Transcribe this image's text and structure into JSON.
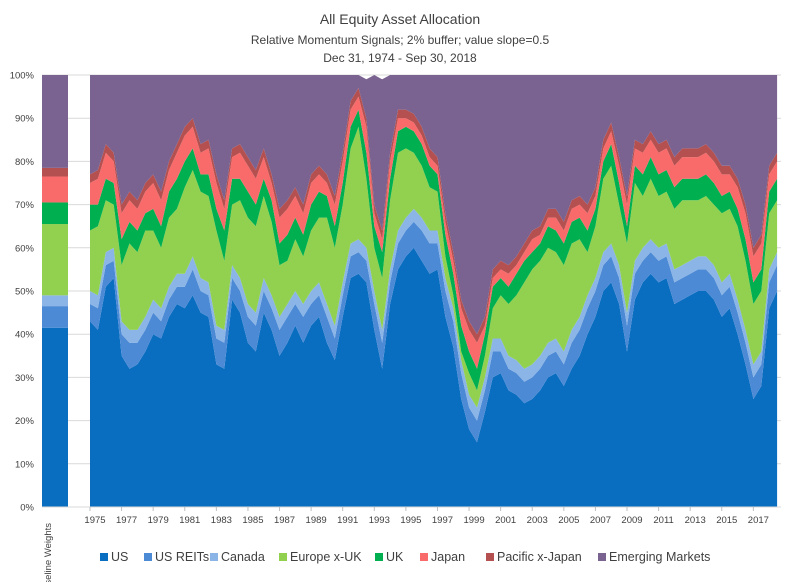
{
  "chart_data": {
    "type": "area",
    "title": "All Equity Asset Allocation",
    "subtitle": "Relative Momentum Signals; 2% buffer; value slope=0.5",
    "date_range": "Dec 31, 1974 - Sep 30, 2018",
    "stacked": true,
    "ylim": [
      0,
      100
    ],
    "y_ticks": [
      "0%",
      "10%",
      "20%",
      "30%",
      "40%",
      "50%",
      "60%",
      "70%",
      "80%",
      "90%",
      "100%"
    ],
    "x_ticks": [
      "1975",
      "1977",
      "1979",
      "1981",
      "1983",
      "1985",
      "1987",
      "1989",
      "1991",
      "1993",
      "1995",
      "1997",
      "1999",
      "2001",
      "2003",
      "2005",
      "2007",
      "2009",
      "2011",
      "2013",
      "2015",
      "2017"
    ],
    "x_label": "Baseline Weights",
    "legend_position": "bottom",
    "colors": {
      "US": "#0a6ec0",
      "US REITs": "#4d8ad6",
      "Canada": "#8ab5e6",
      "Europe x-UK": "#92d050",
      "UK": "#00b050",
      "Japan": "#f96b6b",
      "Pacific x-Japan": "#b55050",
      "Emerging Markets": "#7a6390"
    },
    "baseline_weights": [
      {
        "name": "US",
        "value": 41.5
      },
      {
        "name": "US REITs",
        "value": 5
      },
      {
        "name": "Canada",
        "value": 2.5
      },
      {
        "name": "Europe x-UK",
        "value": 16.5
      },
      {
        "name": "UK",
        "value": 5
      },
      {
        "name": "Japan",
        "value": 6
      },
      {
        "name": "Pacific x-Japan",
        "value": 2
      },
      {
        "name": "Emerging Markets",
        "value": 21.5
      }
    ],
    "x": [
      1975.0,
      1975.5,
      1976.0,
      1976.5,
      1977.0,
      1977.5,
      1978.0,
      1978.5,
      1979.0,
      1979.5,
      1980.0,
      1980.5,
      1981.0,
      1981.5,
      1982.0,
      1982.5,
      1983.0,
      1983.5,
      1984.0,
      1984.5,
      1985.0,
      1985.5,
      1986.0,
      1986.5,
      1987.0,
      1987.5,
      1988.0,
      1988.5,
      1989.0,
      1989.5,
      1990.0,
      1990.5,
      1991.0,
      1991.5,
      1992.0,
      1992.5,
      1993.0,
      1993.5,
      1994.0,
      1994.5,
      1995.0,
      1995.5,
      1996.0,
      1996.5,
      1997.0,
      1997.5,
      1998.0,
      1998.5,
      1999.0,
      1999.5,
      2000.0,
      2000.5,
      2001.0,
      2001.5,
      2002.0,
      2002.5,
      2003.0,
      2003.5,
      2004.0,
      2004.5,
      2005.0,
      2005.5,
      2006.0,
      2006.5,
      2007.0,
      2007.5,
      2008.0,
      2008.5,
      2009.0,
      2009.5,
      2010.0,
      2010.5,
      2011.0,
      2011.5,
      2012.0,
      2012.5,
      2013.0,
      2013.5,
      2014.0,
      2014.5,
      2015.0,
      2015.5,
      2016.0,
      2016.5,
      2017.0,
      2017.5,
      2018.0,
      2018.5
    ],
    "series": [
      {
        "name": "US",
        "values": [
          43,
          41,
          51,
          53,
          35,
          32,
          33,
          36,
          40,
          39,
          44,
          47,
          46,
          49,
          45,
          44,
          33,
          32,
          48,
          45,
          38,
          36,
          45,
          41,
          35,
          38,
          42,
          38,
          42,
          44,
          38,
          34,
          44,
          53,
          54,
          52,
          41,
          32,
          47,
          55,
          58,
          60,
          57,
          54,
          55,
          44,
          37,
          25,
          18,
          15,
          22,
          30,
          31,
          27,
          26,
          24,
          25,
          27,
          30,
          31,
          28,
          32,
          35,
          40,
          44,
          50,
          52,
          47,
          36,
          48,
          52,
          54,
          52,
          53,
          47,
          48,
          49,
          50,
          50,
          48,
          44,
          46,
          40,
          33,
          25,
          28,
          46,
          50
        ]
      },
      {
        "name": "US REITs",
        "values": [
          4,
          5,
          5,
          4,
          5,
          6,
          5,
          5,
          5,
          4,
          4,
          4,
          5,
          6,
          5,
          5,
          6,
          6,
          5,
          5,
          6,
          6,
          5,
          5,
          6,
          6,
          5,
          6,
          5,
          5,
          6,
          5,
          5,
          5,
          5,
          5,
          6,
          6,
          5,
          6,
          6,
          6,
          7,
          7,
          6,
          6,
          6,
          6,
          5,
          5,
          5,
          6,
          5,
          5,
          5,
          5,
          5,
          5,
          5,
          5,
          5,
          6,
          6,
          6,
          6,
          6,
          6,
          6,
          6,
          6,
          5,
          5,
          5,
          5,
          5,
          5,
          5,
          5,
          5,
          5,
          5,
          5,
          5,
          5,
          5,
          5,
          6,
          6
        ]
      },
      {
        "name": "Canada",
        "values": [
          3,
          3,
          3,
          3,
          3,
          3,
          3,
          3,
          3,
          3,
          3,
          3,
          3,
          3,
          3,
          3,
          3,
          3,
          3,
          3,
          3,
          3,
          3,
          3,
          3,
          3,
          3,
          3,
          3,
          3,
          3,
          3,
          3,
          3,
          3,
          3,
          3,
          3,
          3,
          3,
          3,
          3,
          3,
          3,
          3,
          3,
          3,
          3,
          3,
          3,
          3,
          3,
          3,
          3,
          3,
          3,
          3,
          3,
          3,
          3,
          3,
          3,
          3,
          3,
          3,
          3,
          3,
          3,
          3,
          3,
          3,
          3,
          3,
          3,
          3,
          3,
          3,
          3,
          3,
          3,
          3,
          3,
          3,
          3,
          3,
          3,
          3,
          3
        ]
      },
      {
        "name": "Europe x-UK",
        "values": [
          14,
          16,
          12,
          10,
          13,
          20,
          18,
          20,
          16,
          14,
          16,
          15,
          20,
          20,
          20,
          20,
          22,
          16,
          14,
          18,
          20,
          20,
          19,
          17,
          12,
          10,
          12,
          11,
          14,
          15,
          20,
          18,
          18,
          22,
          26,
          16,
          10,
          12,
          16,
          18,
          16,
          13,
          12,
          10,
          9,
          5,
          3,
          2,
          5,
          4,
          5,
          7,
          10,
          12,
          15,
          20,
          22,
          22,
          22,
          20,
          20,
          20,
          18,
          10,
          12,
          17,
          18,
          14,
          16,
          18,
          12,
          14,
          12,
          12,
          14,
          15,
          14,
          13,
          14,
          14,
          16,
          15,
          17,
          16,
          14,
          14,
          13,
          12
        ]
      },
      {
        "name": "UK",
        "values": [
          6,
          5,
          5,
          5,
          6,
          5,
          5,
          4,
          5,
          5,
          6,
          7,
          6,
          5,
          4,
          5,
          5,
          7,
          6,
          5,
          6,
          5,
          4,
          5,
          5,
          6,
          5,
          5,
          6,
          6,
          5,
          5,
          5,
          5,
          4,
          6,
          5,
          6,
          5,
          5,
          5,
          5,
          5,
          5,
          4,
          5,
          5,
          6,
          5,
          5,
          5,
          5,
          4,
          4,
          5,
          5,
          4,
          4,
          5,
          5,
          5,
          5,
          5,
          5,
          4,
          4,
          5,
          5,
          4,
          4,
          5,
          5,
          5,
          5,
          5,
          5,
          5,
          5,
          5,
          5,
          4,
          4,
          4,
          5,
          5,
          5,
          5,
          5
        ]
      },
      {
        "name": "Japan",
        "values": [
          5,
          6,
          6,
          5,
          6,
          5,
          5,
          5,
          6,
          6,
          5,
          6,
          6,
          5,
          5,
          6,
          6,
          5,
          5,
          6,
          6,
          6,
          5,
          4,
          6,
          6,
          5,
          5,
          5,
          4,
          3,
          5,
          5,
          4,
          3,
          6,
          3,
          3,
          4,
          3,
          2,
          2,
          2,
          2,
          2,
          3,
          3,
          4,
          5,
          6,
          2,
          2,
          2,
          3,
          2,
          2,
          3,
          2,
          2,
          3,
          3,
          3,
          3,
          4,
          3,
          3,
          3,
          4,
          5,
          4,
          5,
          4,
          5,
          5,
          5,
          5,
          5,
          5,
          5,
          5,
          5,
          4,
          5,
          6,
          6,
          6,
          4,
          4
        ]
      },
      {
        "name": "Pacific x-Japan",
        "values": [
          2,
          2,
          2,
          2,
          2,
          2,
          2,
          2,
          2,
          2,
          2,
          2,
          2,
          2,
          2,
          2,
          2,
          2,
          2,
          2,
          2,
          2,
          2,
          2,
          2,
          2,
          2,
          2,
          2,
          2,
          2,
          2,
          2,
          2,
          2,
          2,
          2,
          2,
          2,
          2,
          2,
          2,
          2,
          2,
          2,
          2,
          2,
          2,
          2,
          2,
          2,
          2,
          2,
          2,
          2,
          2,
          2,
          2,
          2,
          2,
          2,
          2,
          2,
          2,
          2,
          2,
          2,
          2,
          2,
          2,
          2,
          2,
          2,
          2,
          2,
          2,
          2,
          2,
          2,
          2,
          2,
          2,
          2,
          2,
          2,
          2,
          2,
          2
        ]
      },
      {
        "name": "Emerging Markets",
        "values": [
          23,
          22,
          16,
          18,
          30,
          27,
          29,
          25,
          23,
          27,
          20,
          16,
          12,
          10,
          16,
          15,
          23,
          29,
          17,
          16,
          19,
          22,
          17,
          23,
          31,
          29,
          26,
          30,
          23,
          21,
          23,
          28,
          18,
          6,
          3,
          9,
          30,
          35,
          18,
          8,
          8,
          9,
          12,
          17,
          19,
          32,
          41,
          52,
          57,
          60,
          56,
          45,
          43,
          44,
          42,
          39,
          36,
          35,
          31,
          31,
          34,
          29,
          28,
          30,
          26,
          15,
          11,
          19,
          28,
          15,
          16,
          13,
          16,
          15,
          19,
          17,
          17,
          17,
          16,
          18,
          21,
          21,
          24,
          30,
          40,
          37,
          21,
          18
        ]
      }
    ],
    "legend": [
      "US",
      "US REITs",
      "Canada",
      "Europe x-UK",
      "UK",
      "Japan",
      "Pacific x-Japan",
      "Emerging Markets"
    ]
  }
}
